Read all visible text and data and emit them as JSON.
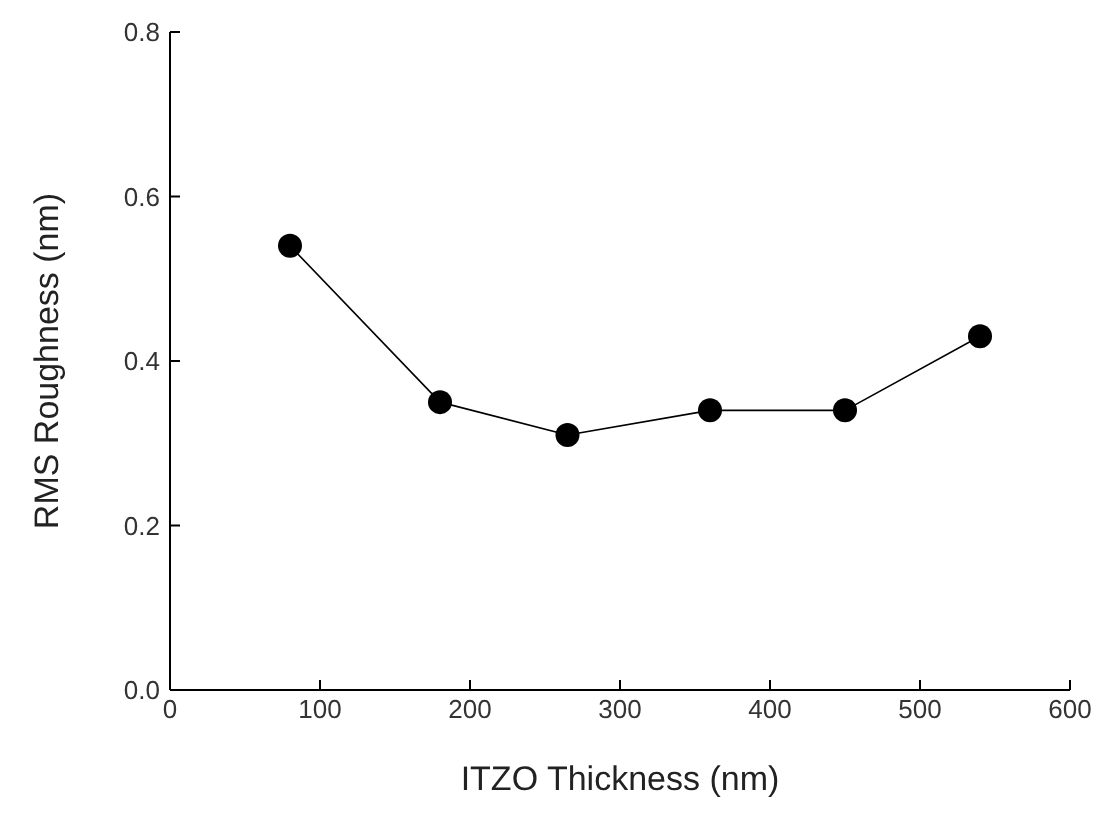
{
  "chart_data": {
    "type": "line",
    "xlabel": "ITZO Thickness (nm)",
    "ylabel": "RMS Roughness (nm)",
    "x": [
      80,
      180,
      265,
      360,
      450,
      540
    ],
    "series": [
      {
        "color": "#000000",
        "values": [
          0.54,
          0.35,
          0.31,
          0.34,
          0.34,
          0.43
        ]
      }
    ],
    "xlim": [
      0,
      600
    ],
    "xticks": [
      0,
      100,
      200,
      300,
      400,
      500,
      600
    ],
    "ylim": [
      0,
      0.8
    ],
    "yticks": [
      {
        "value": 0,
        "label": "0.0"
      },
      {
        "value": 0.2,
        "label": "0.2"
      },
      {
        "value": 0.4,
        "label": "0.4"
      },
      {
        "value": 0.6,
        "label": "0.6"
      },
      {
        "value": 0.8,
        "label": "0.8"
      }
    ],
    "marker": "circle",
    "line_style": "solid",
    "grid": false,
    "legend": false
  }
}
